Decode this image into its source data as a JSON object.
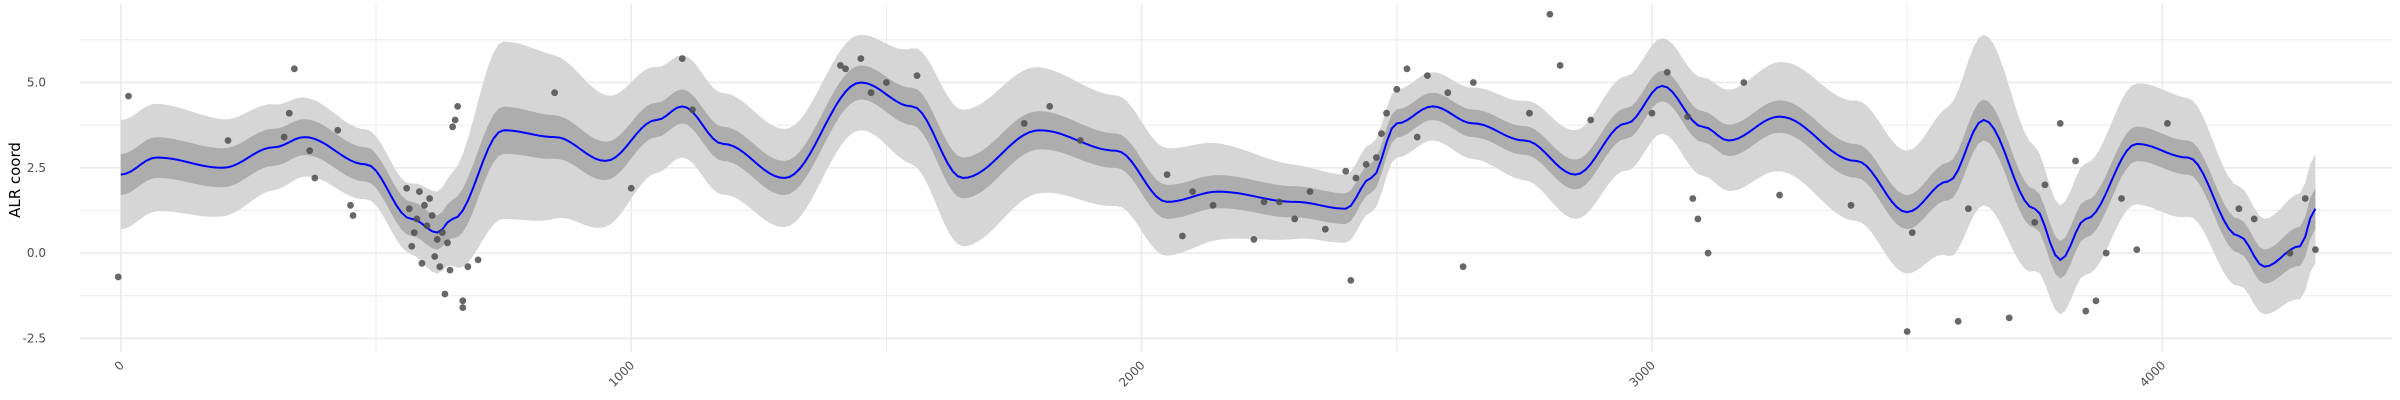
{
  "chart_data": {
    "type": "line",
    "title": "",
    "xlabel": "",
    "ylabel": "ALR coord",
    "xlim": [
      -80,
      4450
    ],
    "ylim": [
      -2.9,
      7.3
    ],
    "x_ticks": [
      0,
      1000,
      2000,
      3000,
      4000
    ],
    "x_tick_labels": [
      "0",
      "1000",
      "2000",
      "3000",
      "4000"
    ],
    "x_minor_ticks": [
      500,
      1500,
      2500,
      3500
    ],
    "y_ticks": [
      -2.5,
      0.0,
      2.5,
      5.0
    ],
    "y_tick_labels": [
      "-2.5",
      "0.0",
      "2.5",
      "5.0"
    ],
    "y_minor_ticks": [
      -1.25,
      1.25,
      3.75,
      6.25
    ],
    "grid": true,
    "legend": "none",
    "colors": {
      "mean_line": "#0000ff",
      "inner_band": "#adadad",
      "outer_band": "#d6d6d6",
      "points": "#4d4d4d",
      "grid": "#ebebeb"
    },
    "series": [
      {
        "kind": "mean",
        "x": [
          0,
          70,
          200,
          300,
          360,
          480,
          570,
          620,
          650,
          750,
          850,
          950,
          1050,
          1100,
          1180,
          1300,
          1450,
          1550,
          1650,
          1800,
          1950,
          2050,
          2150,
          2300,
          2400,
          2450,
          2500,
          2570,
          2650,
          2750,
          2850,
          2950,
          3020,
          3100,
          3150,
          3250,
          3400,
          3500,
          3580,
          3650,
          3750,
          3800,
          3850,
          3950,
          4050,
          4150,
          4200,
          4270,
          4300
        ],
        "y": [
          2.3,
          2.8,
          2.5,
          3.1,
          3.4,
          2.6,
          1.0,
          0.6,
          1.0,
          3.6,
          3.4,
          2.7,
          3.9,
          4.3,
          3.2,
          2.2,
          5.0,
          4.3,
          2.2,
          3.6,
          3.0,
          1.5,
          1.8,
          1.5,
          1.3,
          2.2,
          3.8,
          4.3,
          3.8,
          3.3,
          2.3,
          3.8,
          4.9,
          3.7,
          3.3,
          4.0,
          2.7,
          1.2,
          2.1,
          3.9,
          1.3,
          -0.2,
          1.0,
          3.2,
          2.8,
          0.5,
          -0.4,
          0.2,
          1.3
        ]
      },
      {
        "kind": "inner_band_half_width",
        "x": [
          0,
          550,
          620,
          700,
          1100,
          1450,
          1650,
          2000,
          2400,
          2550,
          3000,
          3500,
          3650,
          3800,
          4000,
          4200,
          4300
        ],
        "y": [
          0.6,
          0.5,
          0.5,
          0.7,
          0.5,
          0.5,
          0.6,
          0.5,
          0.45,
          0.4,
          0.45,
          0.5,
          0.6,
          0.55,
          0.5,
          0.5,
          0.6
        ]
      },
      {
        "kind": "outer_band_half_width",
        "x": [
          0,
          550,
          620,
          750,
          1100,
          1450,
          1650,
          2000,
          2400,
          2550,
          3000,
          3500,
          3650,
          3800,
          4000,
          4200,
          4300
        ],
        "y": [
          1.6,
          1.0,
          1.2,
          2.6,
          1.5,
          1.4,
          2.0,
          1.6,
          1.0,
          1.0,
          1.4,
          1.8,
          2.5,
          1.6,
          1.8,
          1.4,
          1.6
        ]
      },
      {
        "kind": "observations",
        "x": [
          -5,
          15,
          210,
          320,
          330,
          340,
          370,
          380,
          425,
          450,
          455,
          560,
          565,
          570,
          575,
          580,
          585,
          590,
          595,
          600,
          605,
          610,
          615,
          620,
          625,
          630,
          635,
          640,
          645,
          650,
          655,
          660,
          670,
          670,
          680,
          700,
          850,
          1000,
          1100,
          1120,
          1410,
          1420,
          1450,
          1470,
          1500,
          1560,
          1770,
          1820,
          1880,
          2050,
          2080,
          2100,
          2140,
          2220,
          2240,
          2270,
          2300,
          2330,
          2360,
          2400,
          2410,
          2420,
          2440,
          2460,
          2470,
          2480,
          2500,
          2520,
          2540,
          2560,
          2600,
          2630,
          2650,
          2760,
          2800,
          2820,
          2880,
          3000,
          3030,
          3070,
          3080,
          3090,
          3110,
          3180,
          3250,
          3390,
          3500,
          3510,
          3600,
          3620,
          3700,
          3750,
          3770,
          3800,
          3830,
          3850,
          3870,
          3890,
          3920,
          3950,
          4010,
          4150,
          4180,
          4250,
          4280,
          4300
        ],
        "y": [
          -0.7,
          4.6,
          3.3,
          3.4,
          4.1,
          5.4,
          3.0,
          2.2,
          3.6,
          1.4,
          1.1,
          1.9,
          1.3,
          0.2,
          0.6,
          1.0,
          1.8,
          -0.3,
          1.4,
          0.8,
          1.6,
          1.1,
          -0.1,
          0.4,
          -0.4,
          0.6,
          -1.2,
          0.3,
          -0.5,
          3.7,
          3.9,
          4.3,
          -1.6,
          -1.4,
          -0.4,
          -0.2,
          4.7,
          1.9,
          5.7,
          4.2,
          5.5,
          5.4,
          5.7,
          4.7,
          5.0,
          5.2,
          3.8,
          4.3,
          3.3,
          2.3,
          0.5,
          1.8,
          1.4,
          0.4,
          1.5,
          1.5,
          1.0,
          1.8,
          0.7,
          2.4,
          -0.8,
          2.2,
          2.6,
          2.8,
          3.5,
          4.1,
          4.8,
          5.4,
          3.4,
          5.2,
          4.7,
          -0.4,
          5.0,
          4.1,
          7.0,
          5.5,
          3.9,
          4.1,
          5.3,
          4.0,
          1.6,
          1.0,
          0.0,
          5.0,
          1.7,
          1.4,
          -2.3,
          0.6,
          -2.0,
          1.3,
          -1.9,
          0.9,
          2.0,
          3.8,
          2.7,
          -1.7,
          -1.4,
          0.0,
          1.6,
          0.1,
          3.8,
          1.3,
          1.0,
          0.0,
          1.6,
          0.1
        ]
      }
    ]
  }
}
